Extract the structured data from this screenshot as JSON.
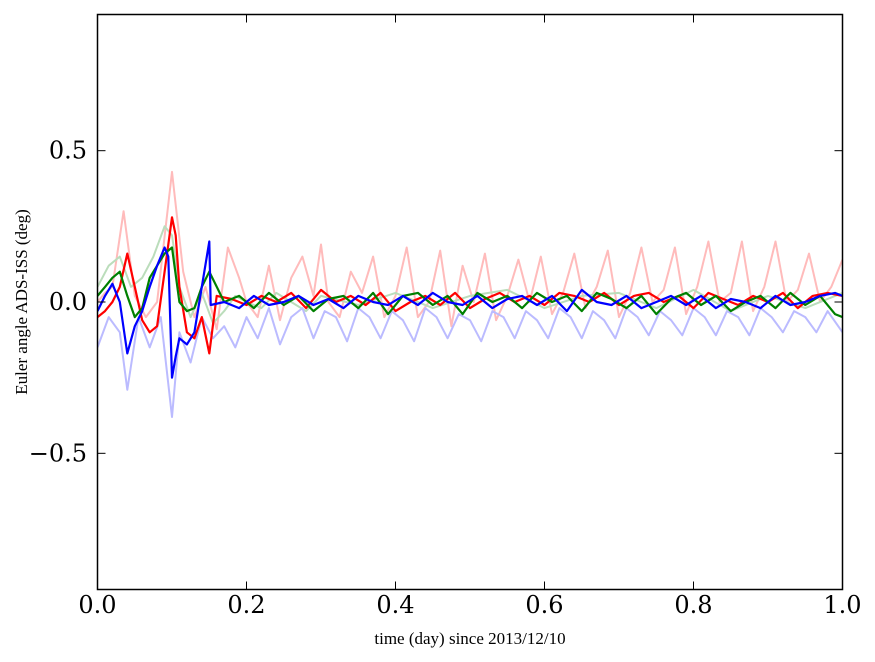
{
  "chart_data": {
    "type": "line",
    "title": "",
    "xlabel": "time (day) since 2013/12/10",
    "ylabel": "Euler angle ADS-ISS (deg)",
    "xlim": [
      0.0,
      1.0
    ],
    "ylim": [
      -0.95,
      0.95
    ],
    "x_ticks": [
      {
        "value": 0.0,
        "label": "0.0"
      },
      {
        "value": 0.2,
        "label": "0.2"
      },
      {
        "value": 0.4,
        "label": "0.4"
      },
      {
        "value": 0.6,
        "label": "0.6"
      },
      {
        "value": 0.8,
        "label": "0.8"
      },
      {
        "value": 1.0,
        "label": "1.0"
      }
    ],
    "y_ticks": [
      {
        "value": 0.5,
        "label": "0.5"
      },
      {
        "value": 0.0,
        "label": "0.0"
      },
      {
        "value": -0.5,
        "label": "−0.5"
      }
    ],
    "grid": false,
    "legend": "none",
    "series": [
      {
        "color": "#ffbbbb",
        "width": 2,
        "x": [
          0.0,
          0.01,
          0.02,
          0.035,
          0.05,
          0.065,
          0.08,
          0.1,
          0.115,
          0.13,
          0.145,
          0.16,
          0.175,
          0.19,
          0.2,
          0.215,
          0.23,
          0.245,
          0.26,
          0.275,
          0.29,
          0.3,
          0.31,
          0.325,
          0.34,
          0.355,
          0.37,
          0.385,
          0.4,
          0.415,
          0.43,
          0.445,
          0.46,
          0.475,
          0.49,
          0.505,
          0.52,
          0.535,
          0.55,
          0.565,
          0.58,
          0.595,
          0.61,
          0.625,
          0.64,
          0.655,
          0.67,
          0.685,
          0.7,
          0.715,
          0.73,
          0.745,
          0.76,
          0.775,
          0.79,
          0.805,
          0.82,
          0.835,
          0.85,
          0.865,
          0.88,
          0.895,
          0.91,
          0.925,
          0.94,
          0.955,
          0.97,
          0.985,
          1.0
        ],
        "y": [
          0.0,
          0.03,
          0.05,
          0.3,
          0.02,
          -0.05,
          0.0,
          0.43,
          0.1,
          -0.05,
          0.05,
          -0.09,
          0.18,
          0.08,
          0.0,
          -0.05,
          0.12,
          -0.06,
          0.08,
          0.15,
          0.02,
          0.19,
          0.0,
          -0.05,
          0.1,
          0.03,
          0.15,
          -0.05,
          0.02,
          0.18,
          -0.05,
          0.0,
          0.17,
          -0.08,
          0.12,
          0.0,
          0.16,
          -0.06,
          0.02,
          0.14,
          0.0,
          0.15,
          -0.04,
          0.03,
          0.16,
          -0.02,
          0.05,
          0.17,
          -0.05,
          0.03,
          0.18,
          0.0,
          0.04,
          0.18,
          -0.04,
          0.05,
          0.2,
          0.0,
          0.03,
          0.2,
          -0.03,
          0.05,
          0.2,
          0.0,
          0.04,
          0.16,
          0.0,
          0.05,
          0.14
        ]
      },
      {
        "color": "#bbddbb",
        "width": 2,
        "x": [
          0.0,
          0.015,
          0.03,
          0.045,
          0.06,
          0.075,
          0.09,
          0.1,
          0.11,
          0.125,
          0.14,
          0.155,
          0.17,
          0.185,
          0.2,
          0.22,
          0.24,
          0.26,
          0.28,
          0.3,
          0.35,
          0.4,
          0.45,
          0.5,
          0.55,
          0.6,
          0.65,
          0.7,
          0.75,
          0.8,
          0.85,
          0.9,
          0.95,
          1.0
        ],
        "y": [
          0.05,
          0.12,
          0.15,
          0.05,
          0.08,
          0.15,
          0.25,
          0.22,
          0.05,
          -0.05,
          0.03,
          -0.07,
          -0.03,
          0.02,
          0.0,
          -0.02,
          0.03,
          0.0,
          -0.03,
          0.02,
          -0.01,
          0.03,
          -0.02,
          0.02,
          0.04,
          -0.02,
          0.02,
          0.03,
          -0.02,
          0.04,
          -0.03,
          0.02,
          -0.02,
          0.03
        ]
      },
      {
        "color": "#bbbbff",
        "width": 2,
        "x": [
          0.0,
          0.015,
          0.03,
          0.04,
          0.055,
          0.07,
          0.085,
          0.1,
          0.11,
          0.125,
          0.14,
          0.155,
          0.17,
          0.185,
          0.2,
          0.215,
          0.23,
          0.245,
          0.26,
          0.275,
          0.29,
          0.305,
          0.32,
          0.335,
          0.35,
          0.365,
          0.38,
          0.395,
          0.41,
          0.425,
          0.44,
          0.455,
          0.47,
          0.485,
          0.5,
          0.515,
          0.53,
          0.545,
          0.56,
          0.575,
          0.59,
          0.605,
          0.62,
          0.635,
          0.65,
          0.665,
          0.68,
          0.695,
          0.71,
          0.725,
          0.74,
          0.755,
          0.77,
          0.785,
          0.8,
          0.815,
          0.83,
          0.845,
          0.86,
          0.875,
          0.89,
          0.905,
          0.92,
          0.935,
          0.95,
          0.965,
          0.98,
          1.0
        ],
        "y": [
          -0.15,
          -0.05,
          -0.1,
          -0.29,
          -0.05,
          -0.15,
          -0.05,
          -0.38,
          -0.1,
          -0.2,
          -0.05,
          -0.12,
          -0.08,
          -0.15,
          -0.05,
          -0.12,
          -0.02,
          -0.14,
          -0.05,
          -0.02,
          -0.12,
          -0.03,
          -0.05,
          -0.13,
          -0.02,
          -0.05,
          -0.12,
          -0.03,
          -0.06,
          -0.13,
          -0.02,
          -0.05,
          -0.12,
          -0.04,
          -0.06,
          -0.13,
          -0.03,
          -0.05,
          -0.12,
          -0.03,
          -0.06,
          -0.12,
          -0.02,
          -0.05,
          -0.12,
          -0.03,
          -0.06,
          -0.12,
          -0.02,
          -0.05,
          -0.11,
          -0.03,
          -0.06,
          -0.11,
          -0.02,
          -0.05,
          -0.11,
          -0.03,
          -0.05,
          -0.11,
          -0.02,
          -0.05,
          -0.1,
          -0.03,
          -0.05,
          -0.1,
          -0.03,
          -0.1
        ]
      },
      {
        "color": "#ff0000",
        "width": 2.2,
        "x": [
          0.0,
          0.01,
          0.02,
          0.03,
          0.04,
          0.05,
          0.06,
          0.07,
          0.08,
          0.09,
          0.1,
          0.105,
          0.11,
          0.12,
          0.13,
          0.14,
          0.15,
          0.16,
          0.18,
          0.2,
          0.22,
          0.24,
          0.26,
          0.28,
          0.3,
          0.32,
          0.34,
          0.36,
          0.38,
          0.4,
          0.42,
          0.44,
          0.46,
          0.48,
          0.5,
          0.52,
          0.54,
          0.56,
          0.58,
          0.6,
          0.62,
          0.64,
          0.66,
          0.68,
          0.7,
          0.72,
          0.74,
          0.76,
          0.78,
          0.8,
          0.82,
          0.84,
          0.86,
          0.88,
          0.9,
          0.92,
          0.94,
          0.96,
          0.98,
          1.0
        ],
        "y": [
          -0.05,
          -0.03,
          0.0,
          0.05,
          0.16,
          0.05,
          -0.06,
          -0.1,
          -0.08,
          0.1,
          0.28,
          0.22,
          0.05,
          -0.1,
          -0.12,
          -0.05,
          -0.17,
          0.02,
          0.01,
          -0.01,
          0.02,
          0.0,
          0.03,
          -0.02,
          0.04,
          0.0,
          0.02,
          -0.01,
          0.03,
          -0.03,
          0.0,
          0.02,
          -0.01,
          0.03,
          -0.02,
          0.01,
          0.03,
          0.0,
          0.02,
          -0.01,
          0.03,
          0.02,
          0.0,
          0.03,
          -0.01,
          0.02,
          0.03,
          0.0,
          0.02,
          -0.02,
          0.03,
          0.01,
          -0.01,
          0.02,
          0.0,
          0.03,
          -0.02,
          0.02,
          0.03,
          0.02
        ]
      },
      {
        "color": "#008000",
        "width": 2.2,
        "x": [
          0.0,
          0.01,
          0.02,
          0.03,
          0.04,
          0.05,
          0.06,
          0.07,
          0.08,
          0.09,
          0.1,
          0.11,
          0.12,
          0.13,
          0.14,
          0.15,
          0.17,
          0.19,
          0.21,
          0.23,
          0.25,
          0.27,
          0.29,
          0.31,
          0.33,
          0.35,
          0.37,
          0.39,
          0.41,
          0.43,
          0.45,
          0.47,
          0.49,
          0.51,
          0.53,
          0.55,
          0.57,
          0.59,
          0.61,
          0.63,
          0.65,
          0.67,
          0.69,
          0.71,
          0.73,
          0.75,
          0.77,
          0.79,
          0.81,
          0.83,
          0.85,
          0.87,
          0.89,
          0.91,
          0.93,
          0.95,
          0.97,
          0.99,
          1.0
        ],
        "y": [
          0.02,
          0.05,
          0.08,
          0.1,
          0.02,
          -0.05,
          -0.02,
          0.08,
          0.12,
          0.16,
          0.18,
          0.0,
          -0.03,
          -0.02,
          0.05,
          0.1,
          0.0,
          0.02,
          -0.02,
          0.03,
          -0.01,
          0.02,
          -0.03,
          0.01,
          0.02,
          -0.02,
          0.03,
          -0.04,
          0.02,
          0.03,
          -0.01,
          0.02,
          -0.04,
          0.03,
          0.0,
          0.02,
          -0.02,
          0.03,
          0.0,
          0.02,
          -0.03,
          0.03,
          0.01,
          -0.02,
          0.02,
          -0.04,
          0.01,
          0.03,
          -0.01,
          0.02,
          -0.03,
          0.0,
          0.02,
          -0.02,
          0.03,
          -0.01,
          0.02,
          -0.04,
          -0.05
        ]
      },
      {
        "color": "#0000ff",
        "width": 2.2,
        "x": [
          0.0,
          0.01,
          0.02,
          0.03,
          0.04,
          0.05,
          0.06,
          0.07,
          0.08,
          0.09,
          0.095,
          0.1,
          0.105,
          0.11,
          0.12,
          0.13,
          0.14,
          0.15,
          0.152,
          0.17,
          0.19,
          0.21,
          0.23,
          0.25,
          0.27,
          0.29,
          0.31,
          0.33,
          0.35,
          0.37,
          0.39,
          0.41,
          0.43,
          0.45,
          0.47,
          0.49,
          0.51,
          0.53,
          0.55,
          0.57,
          0.59,
          0.61,
          0.63,
          0.65,
          0.67,
          0.69,
          0.71,
          0.73,
          0.75,
          0.77,
          0.79,
          0.81,
          0.83,
          0.85,
          0.87,
          0.89,
          0.91,
          0.93,
          0.95,
          0.97,
          0.99,
          1.0
        ],
        "y": [
          -0.03,
          0.02,
          0.06,
          0.0,
          -0.17,
          -0.08,
          -0.03,
          0.05,
          0.12,
          0.18,
          0.15,
          -0.25,
          -0.18,
          -0.12,
          -0.14,
          -0.1,
          0.05,
          0.2,
          -0.01,
          0.0,
          -0.02,
          0.02,
          -0.01,
          0.0,
          0.02,
          -0.01,
          0.01,
          -0.02,
          0.02,
          0.0,
          -0.01,
          0.02,
          -0.01,
          0.03,
          0.0,
          -0.01,
          0.02,
          -0.02,
          0.01,
          0.02,
          -0.01,
          0.02,
          -0.03,
          0.04,
          0.0,
          -0.01,
          0.02,
          -0.02,
          0.0,
          0.02,
          -0.01,
          0.02,
          -0.02,
          0.01,
          0.0,
          -0.02,
          0.02,
          -0.01,
          0.0,
          0.02,
          0.03,
          0.02
        ]
      }
    ]
  }
}
